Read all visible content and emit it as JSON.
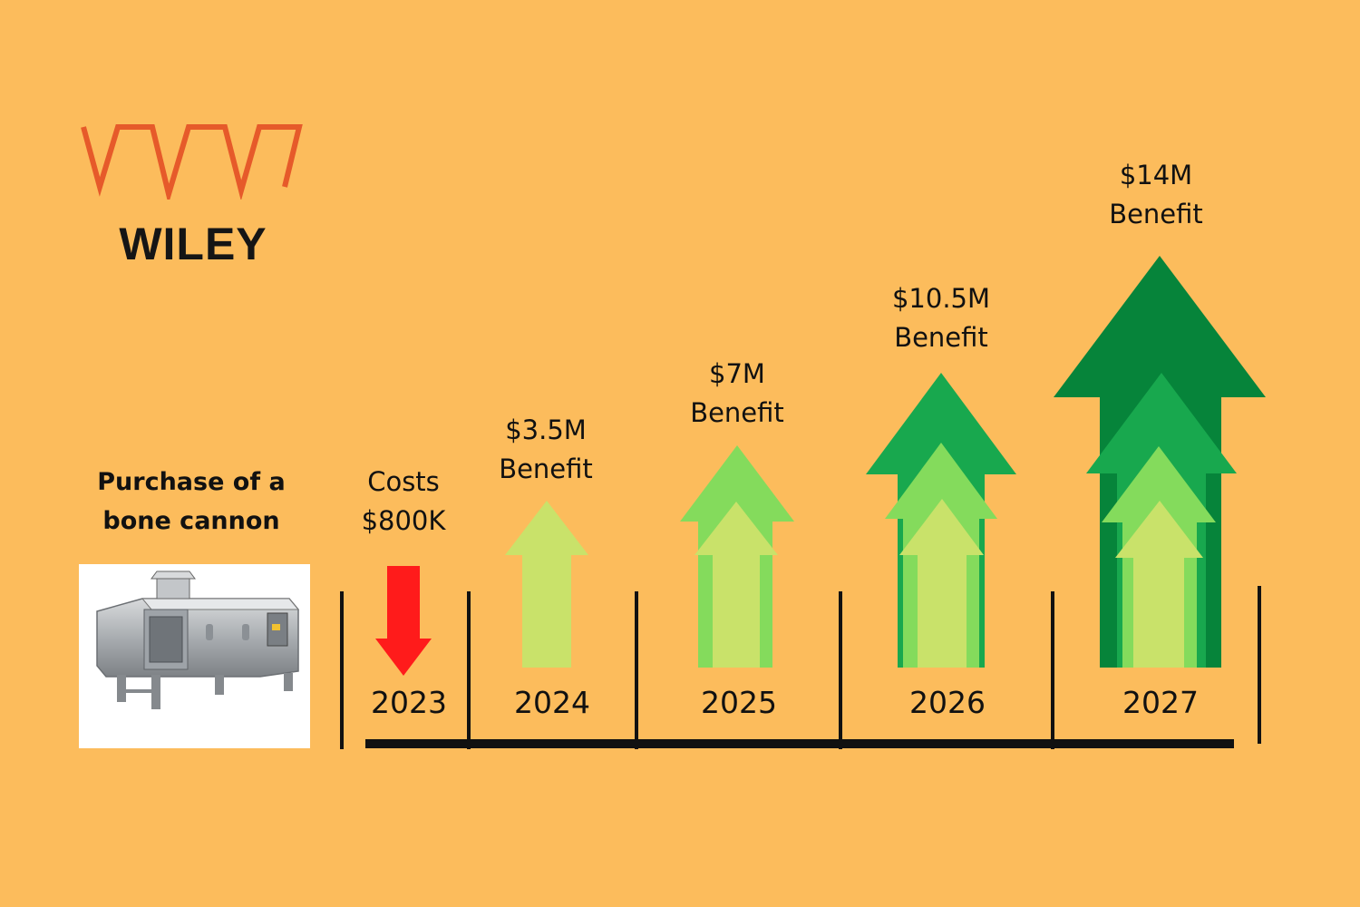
{
  "logo": {
    "name": "WILEY",
    "icon": "wiley-w-logo-icon",
    "color": "#E65A2A"
  },
  "purchase": {
    "label_line1": "Purchase of a",
    "label_line2": "bone cannon",
    "image": "bone-cannon-machine-photo"
  },
  "timeline": [
    {
      "year": "2023",
      "label_line1": "Costs",
      "label_line2": "$800K",
      "direction": "down",
      "value_musd": -0.8,
      "arrow_color": "#FF1B1B"
    },
    {
      "year": "2024",
      "label_line1": "$3.5M",
      "label_line2": "Benefit",
      "direction": "up",
      "value_musd": 3.5,
      "arrow_levels": 1
    },
    {
      "year": "2025",
      "label_line1": "$7M",
      "label_line2": "Benefit",
      "direction": "up",
      "value_musd": 7,
      "arrow_levels": 2
    },
    {
      "year": "2026",
      "label_line1": "$10.5M",
      "label_line2": "Benefit",
      "direction": "up",
      "value_musd": 10.5,
      "arrow_levels": 3
    },
    {
      "year": "2027",
      "label_line1": "$14M",
      "label_line2": "Benefit",
      "direction": "up",
      "value_musd": 14,
      "arrow_levels": 4
    }
  ],
  "colors": {
    "background": "#FCBC5C",
    "arrow_level1": "#C9E26A",
    "arrow_level2": "#84DB5C",
    "arrow_level3": "#18A84E",
    "arrow_level4": "#06843A",
    "cost_arrow": "#FF1B1B"
  }
}
